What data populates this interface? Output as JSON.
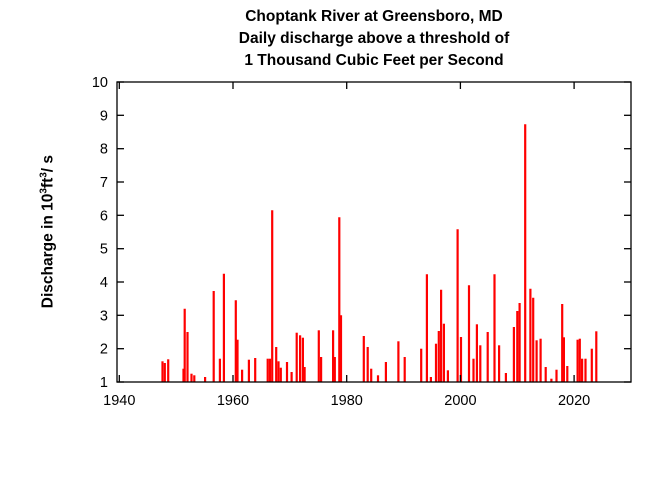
{
  "figure": {
    "title_lines": [
      "Choptank River at Greensboro, MD",
      "Daily discharge above a threshold of",
      "1 Thousand Cubic Feet per Second"
    ]
  },
  "y_axis_label": {
    "text_before_sup1": "Discharge in 10",
    "sup1": "3",
    "text_mid": "ft",
    "sup2": "3",
    "text_after": "/ s"
  },
  "colors": {
    "spike": "#ff0000",
    "axis": "#000000",
    "text": "#000000",
    "background": "#ffffff"
  },
  "chart_data": {
    "type": "bar",
    "subtype": "impulse-spikes (daily discharge events above threshold)",
    "title": "Choptank River at Greensboro, MD — Daily discharge above a threshold of 1 Thousand Cubic Feet per Second",
    "xlabel": "",
    "ylabel": "Discharge in 10^3 ft^3 / s",
    "xlim": [
      1939.6,
      2030.0
    ],
    "ylim": [
      1,
      10
    ],
    "x_ticks": [
      1940,
      1960,
      1980,
      2000,
      2020
    ],
    "y_ticks": [
      1,
      2,
      3,
      4,
      5,
      6,
      7,
      8,
      9,
      10
    ],
    "baseline": 1,
    "grid": false,
    "legend": false,
    "series": [
      {
        "name": "daily discharge spikes",
        "color": "#ff0000",
        "points": [
          [
            1947.6,
            1.62
          ],
          [
            1948.0,
            1.57
          ],
          [
            1948.6,
            1.68
          ],
          [
            1951.3,
            1.4
          ],
          [
            1951.5,
            3.2
          ],
          [
            1952.0,
            2.5
          ],
          [
            1952.7,
            1.25
          ],
          [
            1953.2,
            1.2
          ],
          [
            1955.1,
            1.15
          ],
          [
            1956.6,
            3.73
          ],
          [
            1957.7,
            1.7
          ],
          [
            1958.4,
            4.25
          ],
          [
            1960.5,
            3.45
          ],
          [
            1960.8,
            2.27
          ],
          [
            1961.6,
            1.37
          ],
          [
            1962.8,
            1.67
          ],
          [
            1963.9,
            1.72
          ],
          [
            1966.1,
            1.7
          ],
          [
            1966.5,
            1.7
          ],
          [
            1966.9,
            6.15
          ],
          [
            1967.6,
            2.05
          ],
          [
            1968.0,
            1.62
          ],
          [
            1968.4,
            1.43
          ],
          [
            1969.5,
            1.6
          ],
          [
            1970.3,
            1.3
          ],
          [
            1971.2,
            2.48
          ],
          [
            1971.8,
            2.4
          ],
          [
            1972.3,
            2.33
          ],
          [
            1972.6,
            1.45
          ],
          [
            1975.1,
            2.55
          ],
          [
            1975.5,
            1.75
          ],
          [
            1977.6,
            2.55
          ],
          [
            1977.9,
            1.75
          ],
          [
            1978.7,
            5.94
          ],
          [
            1979.0,
            3.0
          ],
          [
            1983.0,
            2.38
          ],
          [
            1983.7,
            2.05
          ],
          [
            1984.3,
            1.4
          ],
          [
            1985.5,
            1.2
          ],
          [
            1986.9,
            1.6
          ],
          [
            1989.1,
            2.22
          ],
          [
            1990.2,
            1.75
          ],
          [
            1993.1,
            2.0
          ],
          [
            1994.1,
            4.23
          ],
          [
            1994.8,
            1.15
          ],
          [
            1995.7,
            2.15
          ],
          [
            1996.2,
            2.53
          ],
          [
            1996.6,
            3.77
          ],
          [
            1997.1,
            2.75
          ],
          [
            1997.8,
            1.35
          ],
          [
            1999.5,
            5.58
          ],
          [
            2000.1,
            2.35
          ],
          [
            2001.5,
            3.9
          ],
          [
            2002.3,
            1.7
          ],
          [
            2002.9,
            2.73
          ],
          [
            2003.5,
            2.1
          ],
          [
            2004.8,
            2.5
          ],
          [
            2006.0,
            4.23
          ],
          [
            2006.8,
            2.1
          ],
          [
            2008.0,
            1.27
          ],
          [
            2009.4,
            2.65
          ],
          [
            2010.0,
            3.13
          ],
          [
            2010.4,
            3.37
          ],
          [
            2011.4,
            8.73
          ],
          [
            2012.3,
            3.8
          ],
          [
            2012.8,
            3.53
          ],
          [
            2013.4,
            2.25
          ],
          [
            2014.1,
            2.3
          ],
          [
            2015.0,
            1.45
          ],
          [
            2016.0,
            1.1
          ],
          [
            2016.9,
            1.37
          ],
          [
            2017.9,
            3.34
          ],
          [
            2018.2,
            2.34
          ],
          [
            2018.8,
            1.48
          ],
          [
            2020.6,
            2.27
          ],
          [
            2021.0,
            2.3
          ],
          [
            2021.4,
            1.7
          ],
          [
            2022.0,
            1.7
          ],
          [
            2023.1,
            2.0
          ],
          [
            2023.9,
            2.52
          ]
        ]
      }
    ]
  }
}
